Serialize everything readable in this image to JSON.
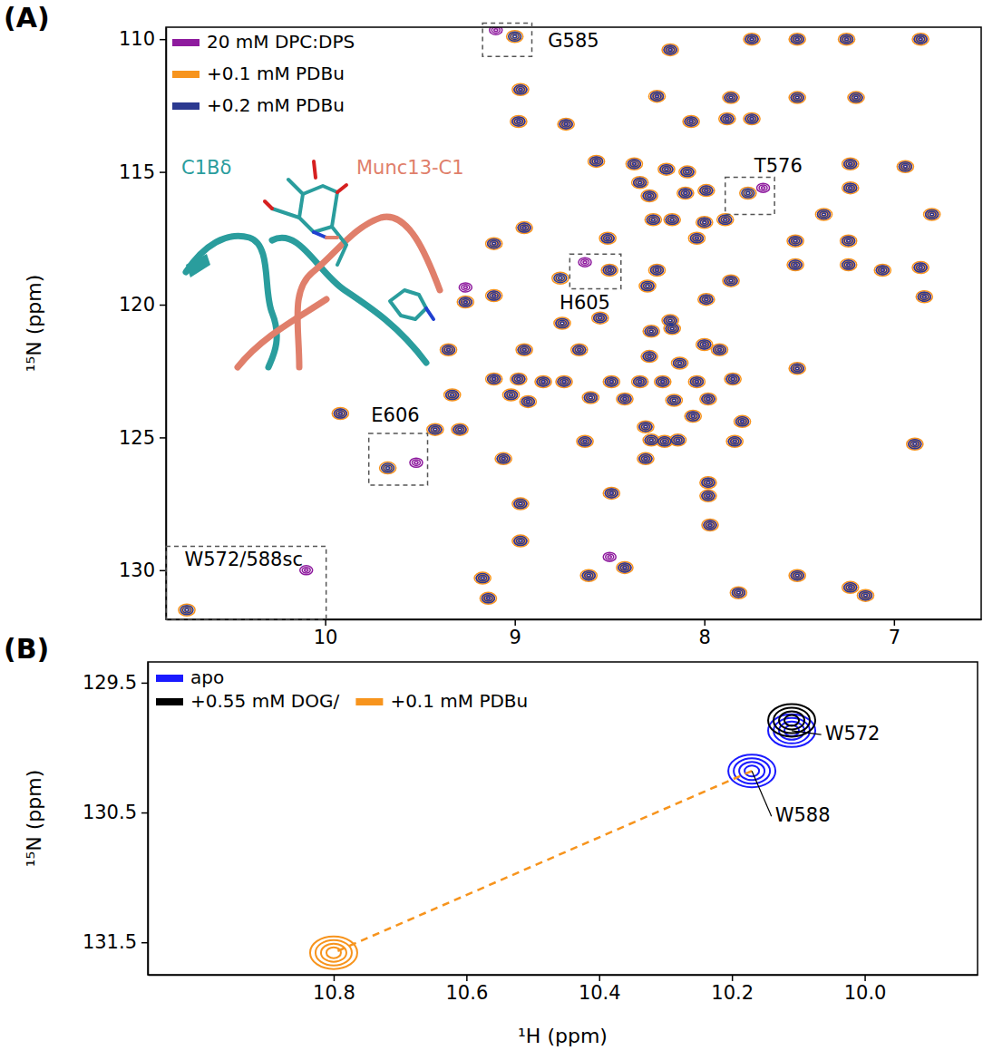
{
  "chart_data": [
    {
      "type": "scatter",
      "panel": "(A)",
      "y_label": "¹⁵N (ppm)",
      "xlim": [
        10.84,
        6.54
      ],
      "ylim": [
        109.55,
        131.85
      ],
      "xticks": [
        10,
        9,
        8,
        7
      ],
      "yticks": [
        110,
        115,
        120,
        125,
        130
      ],
      "legend": "upper left",
      "series": [
        {
          "name": "20 mM DPC:DPS",
          "color": "#8e1b9e",
          "x": [
            6.86,
            7.25,
            7.51,
            7.75,
            8.18,
            8.97,
            8.25,
            7.86,
            7.51,
            7.2,
            7.75,
            8.98,
            8.73,
            8.07,
            7.88,
            8.57,
            8.37,
            8.2,
            8.09,
            7.23,
            6.94,
            8.34,
            8.29,
            8.1,
            7.99,
            7.23,
            8.27,
            8.17,
            8.0,
            7.89,
            7.37,
            6.8,
            8.95,
            8.51,
            8.04,
            7.52,
            7.24,
            9.11,
            8.5,
            8.25,
            7.52,
            7.24,
            6.86,
            8.3,
            7.86,
            7.06,
            9.11,
            9.26,
            7.99,
            6.84,
            8.75,
            8.55,
            8.18,
            8.17,
            8.28,
            8.66,
            9.35,
            8.95,
            8.29,
            8.0,
            7.92,
            8.13,
            7.51,
            9.11,
            8.98,
            8.85,
            8.74,
            8.49,
            8.34,
            8.22,
            8.04,
            7.85,
            9.33,
            9.02,
            8.93,
            8.6,
            8.42,
            8.16,
            7.98,
            9.92,
            8.06,
            7.8,
            9.42,
            8.31,
            8.28,
            8.21,
            8.14,
            8.63,
            9.29,
            7.84,
            6.89,
            9.06,
            8.97,
            8.49,
            7.98,
            7.98,
            8.31,
            8.97,
            7.97,
            8.42,
            9.17,
            8.61,
            7.82,
            7.51,
            7.23,
            7.15,
            9.14,
            9.1,
            7.69,
            8.63,
            9.52,
            10.1,
            9.26,
            8.5
          ],
          "values": [
            110,
            110,
            110,
            110,
            110.4,
            111.9,
            112.15,
            112.2,
            112.2,
            112.2,
            113,
            113.1,
            113.2,
            113.1,
            113,
            114.6,
            114.7,
            114.9,
            115,
            114.7,
            114.8,
            115.4,
            115.9,
            115.8,
            115.7,
            115.6,
            116.8,
            116.8,
            116.9,
            116.8,
            116.6,
            116.6,
            117.1,
            117.5,
            117.5,
            117.6,
            117.6,
            117.7,
            118.7,
            118.7,
            118.5,
            118.5,
            118.6,
            119.3,
            119.1,
            118.7,
            119.66,
            119.9,
            119.8,
            119.7,
            120.7,
            120.5,
            120.6,
            120.9,
            121,
            121.7,
            121.7,
            121.7,
            121.95,
            121.5,
            121.7,
            122.2,
            122.4,
            122.8,
            122.8,
            122.9,
            122.9,
            122.9,
            122.9,
            122.9,
            122.9,
            122.8,
            123.4,
            123.4,
            123.65,
            123.5,
            123.55,
            123.6,
            123.55,
            124.1,
            124.2,
            124.4,
            124.7,
            124.6,
            125.1,
            125.15,
            125.1,
            125.15,
            124.7,
            125.15,
            125.25,
            125.8,
            127.5,
            127.1,
            126.7,
            127.2,
            125.8,
            128.9,
            128.3,
            129.9,
            130.3,
            130.2,
            130.85,
            130.2,
            130.65,
            130.95,
            131.06,
            109.66,
            115.6,
            118.4,
            125.95,
            130,
            119.35,
            129.5
          ]
        },
        {
          "name": "+0.1 mM PDBu",
          "color": "#f7941d",
          "x": [
            6.86,
            7.25,
            7.51,
            7.75,
            8.18,
            8.97,
            8.25,
            7.86,
            7.51,
            7.2,
            7.75,
            8.98,
            8.73,
            8.07,
            7.88,
            8.57,
            8.37,
            8.2,
            8.09,
            7.23,
            6.94,
            8.34,
            8.29,
            8.1,
            7.99,
            7.23,
            8.27,
            8.17,
            8.0,
            7.89,
            7.37,
            6.8,
            8.95,
            8.51,
            8.04,
            7.52,
            7.24,
            9.11,
            8.5,
            8.25,
            7.52,
            7.24,
            6.86,
            8.3,
            7.86,
            7.06,
            9.11,
            9.26,
            7.99,
            6.84,
            8.75,
            8.55,
            8.18,
            8.17,
            8.28,
            8.66,
            9.35,
            8.95,
            8.29,
            8.0,
            7.92,
            8.13,
            7.51,
            9.11,
            8.98,
            8.85,
            8.74,
            8.49,
            8.34,
            8.22,
            8.04,
            7.85,
            9.33,
            9.02,
            8.93,
            8.6,
            8.42,
            8.16,
            7.98,
            9.92,
            8.06,
            7.8,
            9.42,
            8.31,
            8.28,
            8.21,
            8.14,
            8.63,
            9.29,
            7.84,
            6.89,
            9.06,
            8.97,
            8.49,
            7.98,
            7.98,
            8.31,
            8.97,
            7.97,
            8.42,
            9.17,
            8.61,
            7.82,
            7.51,
            7.23,
            7.15,
            9.14,
            9.0,
            7.77,
            8.76,
            9.67,
            10.73
          ],
          "values": [
            110,
            110,
            110,
            110,
            110.4,
            111.9,
            112.15,
            112.2,
            112.2,
            112.2,
            113,
            113.1,
            113.2,
            113.1,
            113,
            114.6,
            114.7,
            114.9,
            115,
            114.7,
            114.8,
            115.4,
            115.9,
            115.8,
            115.7,
            115.6,
            116.8,
            116.8,
            116.9,
            116.8,
            116.6,
            116.6,
            117.1,
            117.5,
            117.5,
            117.6,
            117.6,
            117.7,
            118.7,
            118.7,
            118.5,
            118.5,
            118.6,
            119.3,
            119.1,
            118.7,
            119.66,
            119.9,
            119.8,
            119.7,
            120.7,
            120.5,
            120.6,
            120.9,
            121,
            121.7,
            121.7,
            121.7,
            121.95,
            121.5,
            121.7,
            122.2,
            122.4,
            122.8,
            122.8,
            122.9,
            122.9,
            122.9,
            122.9,
            122.9,
            122.9,
            122.8,
            123.4,
            123.4,
            123.65,
            123.5,
            123.55,
            123.6,
            123.55,
            124.1,
            124.2,
            124.4,
            124.7,
            124.6,
            125.1,
            125.15,
            125.1,
            125.15,
            124.7,
            125.15,
            125.25,
            125.8,
            127.5,
            127.1,
            126.7,
            127.2,
            125.8,
            128.9,
            128.3,
            129.9,
            130.3,
            130.2,
            130.85,
            130.2,
            130.65,
            130.95,
            131.06,
            109.9,
            115.8,
            119,
            126.15,
            131.5
          ]
        },
        {
          "name": "+0.2 mM PDBu",
          "color": "#2b3990",
          "x": [
            6.86,
            7.25,
            7.51,
            7.75,
            8.18,
            8.97,
            8.25,
            7.86,
            7.51,
            7.2,
            7.75,
            8.98,
            8.73,
            8.07,
            7.88,
            8.57,
            8.37,
            8.2,
            8.09,
            7.23,
            6.94,
            8.34,
            8.29,
            8.1,
            7.99,
            7.23,
            8.27,
            8.17,
            8.0,
            7.89,
            7.37,
            6.8,
            8.95,
            8.51,
            8.04,
            7.52,
            7.24,
            9.11,
            8.5,
            8.25,
            7.52,
            7.24,
            6.86,
            8.3,
            7.86,
            7.06,
            9.11,
            9.26,
            7.99,
            6.84,
            8.75,
            8.55,
            8.18,
            8.17,
            8.28,
            8.66,
            9.35,
            8.95,
            8.29,
            8.0,
            7.92,
            8.13,
            7.51,
            9.11,
            8.98,
            8.85,
            8.74,
            8.49,
            8.34,
            8.22,
            8.04,
            7.85,
            9.33,
            9.02,
            8.93,
            8.6,
            8.42,
            8.16,
            7.98,
            9.92,
            8.06,
            7.8,
            9.42,
            8.31,
            8.28,
            8.21,
            8.14,
            8.63,
            9.29,
            7.84,
            6.89,
            9.06,
            8.97,
            8.49,
            7.98,
            7.98,
            8.31,
            8.97,
            7.97,
            8.42,
            9.17,
            8.61,
            7.82,
            7.51,
            7.23,
            7.15,
            9.14,
            9.0,
            7.77,
            8.76,
            9.67,
            10.73
          ],
          "values": [
            110,
            110,
            110,
            110,
            110.4,
            111.9,
            112.15,
            112.2,
            112.2,
            112.2,
            113,
            113.1,
            113.2,
            113.1,
            113,
            114.6,
            114.7,
            114.9,
            115,
            114.7,
            114.8,
            115.4,
            115.9,
            115.8,
            115.7,
            115.6,
            116.8,
            116.8,
            116.9,
            116.8,
            116.6,
            116.6,
            117.1,
            117.5,
            117.5,
            117.6,
            117.6,
            117.7,
            118.7,
            118.7,
            118.5,
            118.5,
            118.6,
            119.3,
            119.1,
            118.7,
            119.66,
            119.9,
            119.8,
            119.7,
            120.7,
            120.5,
            120.6,
            120.9,
            121,
            121.7,
            121.7,
            121.7,
            121.95,
            121.5,
            121.7,
            122.2,
            122.4,
            122.8,
            122.8,
            122.9,
            122.9,
            122.9,
            122.9,
            122.9,
            122.9,
            122.8,
            123.4,
            123.4,
            123.65,
            123.5,
            123.55,
            123.6,
            123.55,
            124.1,
            124.2,
            124.4,
            124.7,
            124.6,
            125.1,
            125.15,
            125.1,
            125.15,
            124.7,
            125.15,
            125.25,
            125.8,
            127.5,
            127.1,
            126.7,
            127.2,
            125.8,
            128.9,
            128.3,
            129.9,
            130.3,
            130.2,
            130.85,
            130.2,
            130.65,
            130.95,
            131.06,
            109.9,
            115.8,
            119,
            126.15,
            131.5
          ]
        }
      ],
      "annotations": [
        {
          "text": "G585",
          "box": {
            "x": [
              9.17,
              8.91
            ],
            "y": [
              109.4,
              110.65
            ]
          },
          "text_x": 8.69,
          "text_y": 110.1
        },
        {
          "text": "T576",
          "box": {
            "x": [
              7.89,
              7.63
            ],
            "y": [
              115.2,
              116.6
            ]
          },
          "text_x": 7.61,
          "text_y": 114.8
        },
        {
          "text": "H605",
          "box": {
            "x": [
              8.71,
              8.44
            ],
            "y": [
              118.1,
              119.4
            ]
          },
          "text_x": 8.63,
          "text_y": 119.95
        },
        {
          "text": "E606",
          "box": {
            "x": [
              9.77,
              9.46
            ],
            "y": [
              124.85,
              126.8
            ]
          },
          "text_x": 9.63,
          "text_y": 124.2
        },
        {
          "text": "W572/588sc",
          "box": {
            "x": [
              10.84,
              9.995
            ],
            "y": [
              129.1,
              131.85
            ]
          },
          "text_x": 10.43,
          "text_y": 129.62
        }
      ],
      "inset_labels": [
        {
          "text": "C1Bδ",
          "color": "#2a9d9d"
        },
        {
          "text": "Munc13-C1",
          "color": "#e07f6b"
        }
      ]
    },
    {
      "type": "scatter",
      "panel": "(B)",
      "x_label": "¹H (ppm)",
      "y_label": "¹⁵N (ppm)",
      "xlim": [
        11.08,
        9.83
      ],
      "ylim": [
        129.34,
        131.75
      ],
      "xticks": [
        10.8,
        10.6,
        10.4,
        10.2,
        {
          "value": 10,
          "label": "10.0"
        }
      ],
      "yticks": [
        129.5,
        130.5,
        131.5
      ],
      "legend": "upper left",
      "series": [
        {
          "name": "apo",
          "color": "#1a1aff",
          "x": [
            10.11,
            10.17
          ],
          "values": [
            129.87,
            130.18
          ]
        },
        {
          "name": "+0.55 mM DOG/",
          "color": "#000000",
          "x": [
            10.11
          ],
          "values": [
            129.79
          ]
        },
        {
          "name": "+0.1 mM PDBu",
          "color": "#f7941d",
          "x": [
            10.8
          ],
          "values": [
            131.58
          ]
        },
        {
          "type": "line",
          "line_style": "dashed",
          "color": "#f7941d",
          "x": [
            10.17,
            10.8
          ],
          "values": [
            130.18,
            131.58
          ]
        }
      ],
      "annotations": [
        {
          "text": "W572",
          "x": 10.11,
          "y": 129.87,
          "text_x": 10.06,
          "text_y": 129.9
        },
        {
          "text": "W588",
          "x": 10.17,
          "y": 130.18,
          "text_x": 10.135,
          "text_y": 130.53
        }
      ]
    }
  ]
}
